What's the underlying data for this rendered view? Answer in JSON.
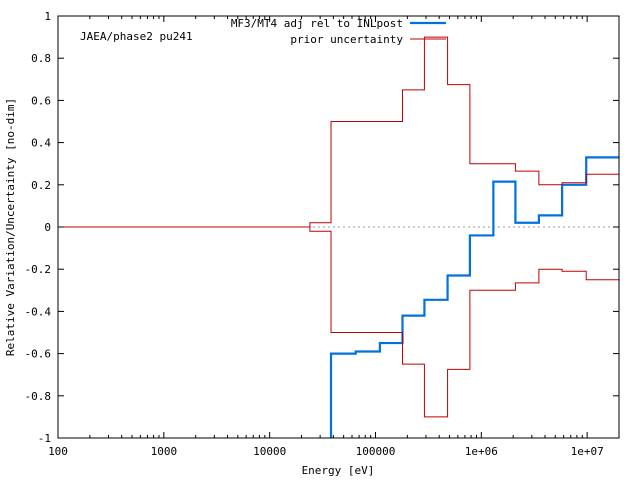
{
  "chart_data": {
    "type": "line",
    "xlabel": "Energy [eV]",
    "ylabel": "Relative Variation/Uncertainty [no-dim]",
    "xscale": "log",
    "xlim": [
      100,
      20000000
    ],
    "ylim": [
      -1,
      1
    ],
    "x_ticks": [
      {
        "value": 100,
        "label": "100"
      },
      {
        "value": 1000,
        "label": "1000"
      },
      {
        "value": 10000,
        "label": "10000"
      },
      {
        "value": 100000,
        "label": "100000"
      },
      {
        "value": 1000000,
        "label": "1e+06"
      },
      {
        "value": 10000000,
        "label": "1e+07"
      }
    ],
    "y_ticks": [
      {
        "value": -1,
        "label": "-1"
      },
      {
        "value": -0.8,
        "label": "-0.8"
      },
      {
        "value": -0.6,
        "label": "-0.6"
      },
      {
        "value": -0.4,
        "label": "-0.4"
      },
      {
        "value": -0.2,
        "label": "-0.2"
      },
      {
        "value": 0,
        "label": "0"
      },
      {
        "value": 0.2,
        "label": "0.2"
      },
      {
        "value": 0.4,
        "label": "0.4"
      },
      {
        "value": 0.6,
        "label": "0.6"
      },
      {
        "value": 0.8,
        "label": "0.8"
      },
      {
        "value": 1,
        "label": "1"
      }
    ],
    "annotation": "JAEA/phase2 pu241",
    "zero_line": true,
    "legend_position": "top-right",
    "series": [
      {
        "name": "MF3/MT4 adj rel to INLpost",
        "color": "#0072e0",
        "style": "step",
        "points": [
          [
            38000,
            -1.0
          ],
          [
            38000,
            -0.6
          ],
          [
            65000,
            -0.6
          ],
          [
            65000,
            -0.59
          ],
          [
            110000,
            -0.59
          ],
          [
            110000,
            -0.55
          ],
          [
            180000,
            -0.55
          ],
          [
            180000,
            -0.42
          ],
          [
            290000,
            -0.42
          ],
          [
            290000,
            -0.345
          ],
          [
            480000,
            -0.345
          ],
          [
            480000,
            -0.23
          ],
          [
            780000,
            -0.23
          ],
          [
            780000,
            -0.04
          ],
          [
            1300000,
            -0.04
          ],
          [
            1300000,
            0.215
          ],
          [
            2100000,
            0.215
          ],
          [
            2100000,
            0.02
          ],
          [
            3500000,
            0.02
          ],
          [
            3500000,
            0.055
          ],
          [
            5800000,
            0.055
          ],
          [
            5800000,
            0.2
          ],
          [
            9800000,
            0.2
          ],
          [
            9800000,
            0.33
          ],
          [
            20000000,
            0.33
          ]
        ]
      },
      {
        "name": "prior uncertainty",
        "color": "#c00000",
        "style": "step",
        "mirror": true,
        "points": [
          [
            100,
            0.0
          ],
          [
            24000,
            0.0
          ],
          [
            24000,
            0.02
          ],
          [
            38000,
            0.02
          ],
          [
            38000,
            0.5
          ],
          [
            180000,
            0.5
          ],
          [
            180000,
            0.65
          ],
          [
            290000,
            0.65
          ],
          [
            290000,
            0.9
          ],
          [
            480000,
            0.9
          ],
          [
            480000,
            0.675
          ],
          [
            780000,
            0.675
          ],
          [
            780000,
            0.3
          ],
          [
            2100000,
            0.3
          ],
          [
            2100000,
            0.265
          ],
          [
            3500000,
            0.265
          ],
          [
            3500000,
            0.2
          ],
          [
            5800000,
            0.2
          ],
          [
            5800000,
            0.21
          ],
          [
            9800000,
            0.21
          ],
          [
            9800000,
            0.25
          ],
          [
            20000000,
            0.25
          ]
        ]
      }
    ]
  }
}
